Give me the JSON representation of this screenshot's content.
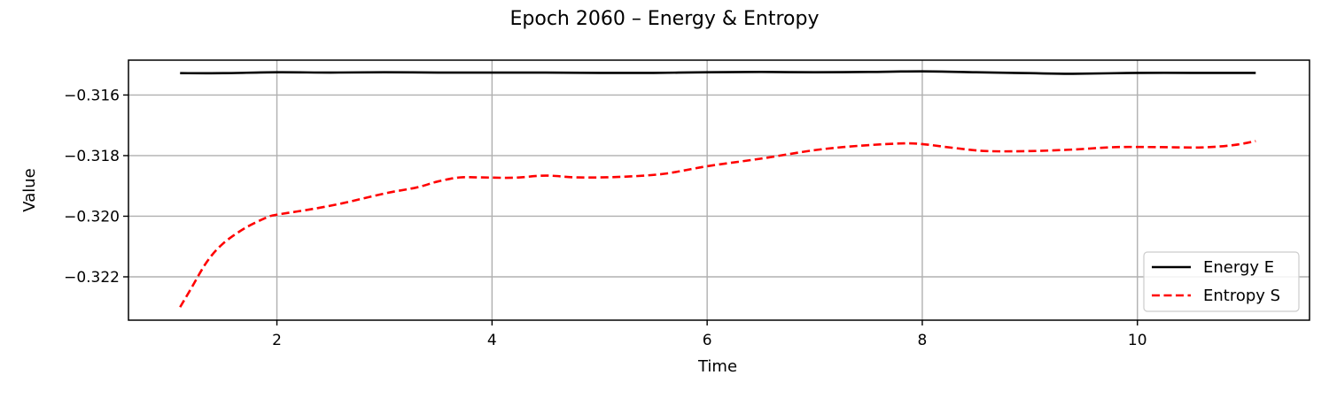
{
  "chart_data": {
    "type": "line",
    "title": "Epoch 2060 – Energy & Entropy",
    "xlabel": "Time",
    "ylabel": "Value",
    "xlim": [
      0.62,
      11.6
    ],
    "ylim": [
      -0.32343,
      -0.31485
    ],
    "xticks": [
      2,
      4,
      6,
      8,
      10
    ],
    "yticks": [
      -0.316,
      -0.318,
      -0.32,
      -0.322
    ],
    "xtick_labels": [
      "2",
      "4",
      "6",
      "8",
      "10"
    ],
    "ytick_labels": [
      "−0.316",
      "−0.318",
      "−0.320",
      "−0.322"
    ],
    "grid": true,
    "legend_position": "lower-right",
    "series": [
      {
        "name": "Energy E",
        "color": "#000000",
        "style": "solid",
        "x": [
          1.1,
          1.5,
          2.0,
          2.5,
          3.0,
          3.5,
          4.0,
          4.5,
          5.0,
          5.5,
          6.0,
          6.5,
          7.0,
          7.5,
          8.0,
          8.5,
          9.0,
          9.4,
          10.0,
          10.5,
          11.1
        ],
        "y": [
          -0.31528,
          -0.31528,
          -0.31525,
          -0.31526,
          -0.31525,
          -0.31526,
          -0.31526,
          -0.31526,
          -0.31527,
          -0.31527,
          -0.31525,
          -0.31524,
          -0.31525,
          -0.31524,
          -0.31522,
          -0.31525,
          -0.31528,
          -0.3153,
          -0.31527,
          -0.31527,
          -0.31527
        ]
      },
      {
        "name": "Entropy S",
        "color": "#ff0000",
        "style": "dashed",
        "x": [
          1.1,
          1.2,
          1.35,
          1.5,
          1.7,
          1.9,
          2.0,
          2.3,
          2.6,
          3.0,
          3.3,
          3.5,
          3.7,
          3.9,
          4.2,
          4.5,
          4.8,
          5.2,
          5.6,
          6.0,
          6.5,
          7.0,
          7.4,
          7.8,
          8.0,
          8.3,
          8.6,
          9.0,
          9.4,
          9.8,
          10.2,
          10.6,
          10.9,
          11.1
        ],
        "y": [
          -0.323,
          -0.3224,
          -0.3215,
          -0.3209,
          -0.3204,
          -0.32005,
          -0.31995,
          -0.31978,
          -0.31958,
          -0.31925,
          -0.31905,
          -0.31885,
          -0.31872,
          -0.31872,
          -0.31873,
          -0.31866,
          -0.31872,
          -0.3187,
          -0.3186,
          -0.31835,
          -0.3181,
          -0.31782,
          -0.31768,
          -0.3176,
          -0.31762,
          -0.31775,
          -0.31785,
          -0.31785,
          -0.3178,
          -0.31772,
          -0.31772,
          -0.31773,
          -0.31765,
          -0.31752
        ]
      }
    ]
  }
}
